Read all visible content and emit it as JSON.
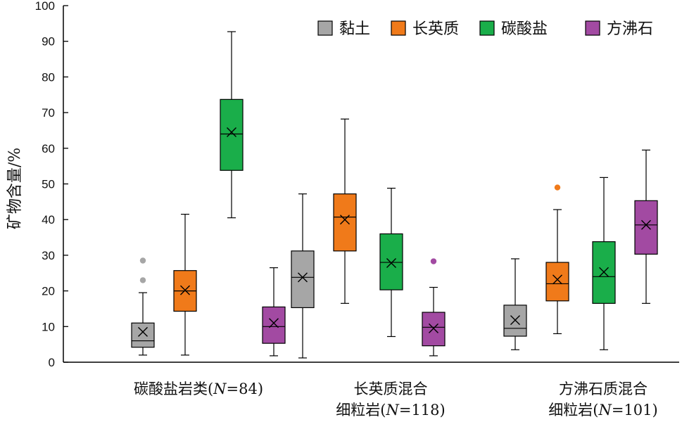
{
  "chart_data": {
    "type": "box",
    "title": "",
    "xlabel": "",
    "ylabel": "矿物含量/%",
    "ylim": [
      0,
      100
    ],
    "yticks": [
      0,
      10,
      20,
      30,
      40,
      50,
      60,
      70,
      80,
      90,
      100
    ],
    "grid": false,
    "legend_position": "top-right",
    "categories": [
      {
        "lines": [
          "碳酸盐岩类(",
          "N",
          "=84)"
        ]
      },
      {
        "lines": [
          "长英质混合"
        ],
        "line2": [
          "细粒岩(",
          "N",
          "=118)"
        ]
      },
      {
        "lines": [
          "方沸石质混合"
        ],
        "line2": [
          "细粒岩(",
          "N",
          "=101)"
        ]
      }
    ],
    "series": [
      {
        "name": "黏土",
        "color": "#a6a6a6",
        "boxes": [
          {
            "min": 2,
            "q1": 4.2,
            "median": 6,
            "q3": 11,
            "max": 19.5,
            "mean": 8.5,
            "outliers": [
              28.5,
              23
            ]
          },
          {
            "min": 1.2,
            "q1": 15.3,
            "median": 23.8,
            "q3": 31.2,
            "max": 47.2,
            "mean": 23.8,
            "outliers": []
          },
          {
            "min": 3.5,
            "q1": 7.3,
            "median": 9.5,
            "q3": 16,
            "max": 29,
            "mean": 11.8,
            "outliers": []
          }
        ]
      },
      {
        "name": "长英质",
        "color": "#f07a1a",
        "boxes": [
          {
            "min": 2,
            "q1": 14.3,
            "median": 20,
            "q3": 25.7,
            "max": 41.5,
            "mean": 20.2,
            "outliers": []
          },
          {
            "min": 16.5,
            "q1": 31.2,
            "median": 40.7,
            "q3": 47.2,
            "max": 68.2,
            "mean": 40,
            "outliers": []
          },
          {
            "min": 8,
            "q1": 17.2,
            "median": 22,
            "q3": 28,
            "max": 42.8,
            "mean": 23.2,
            "outliers": [
              49
            ]
          }
        ]
      },
      {
        "name": "碳酸盐",
        "color": "#1aae4a",
        "boxes": [
          {
            "min": 40.5,
            "q1": 53.8,
            "median": 64,
            "q3": 73.7,
            "max": 92.7,
            "mean": 64.5,
            "outliers": []
          },
          {
            "min": 7.2,
            "q1": 20.3,
            "median": 28,
            "q3": 36,
            "max": 48.8,
            "mean": 27.8,
            "outliers": []
          },
          {
            "min": 3.5,
            "q1": 16.5,
            "median": 24,
            "q3": 33.8,
            "max": 51.8,
            "mean": 25.3,
            "outliers": []
          }
        ]
      },
      {
        "name": "方沸石",
        "color": "#a24aa2",
        "boxes": [
          {
            "min": 1.8,
            "q1": 5.3,
            "median": 10,
            "q3": 15.5,
            "max": 26.5,
            "mean": 11,
            "outliers": []
          },
          {
            "min": 1.8,
            "q1": 4.6,
            "median": 9.8,
            "q3": 14,
            "max": 21,
            "mean": 9.5,
            "outliers": [
              28.3
            ]
          },
          {
            "min": 16.5,
            "q1": 30.3,
            "median": 38.5,
            "q3": 45.3,
            "max": 59.5,
            "mean": 38.5,
            "outliers": []
          }
        ]
      }
    ]
  }
}
